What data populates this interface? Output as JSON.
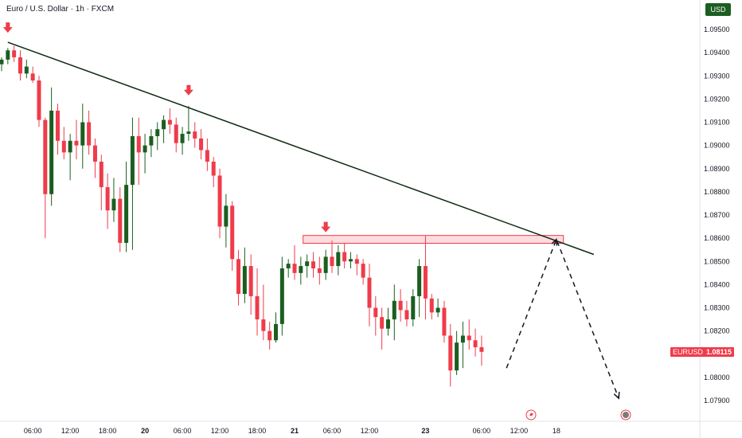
{
  "header": {
    "title": "Euro / U.S. Dollar · 1h · FXCM",
    "currency_button": "USD"
  },
  "price_tag": {
    "symbol": "EURUSD",
    "price": "1.08115"
  },
  "chart_data": {
    "type": "candlestick",
    "symbol": "EURUSD",
    "y_ticks": [
      "1.09500",
      "1.09400",
      "1.09300",
      "1.09200",
      "1.09100",
      "1.09000",
      "1.08900",
      "1.08800",
      "1.08700",
      "1.08600",
      "1.08500",
      "1.08400",
      "1.08300",
      "1.08200",
      "1.08000",
      "1.07900"
    ],
    "y_range": [
      1.0785,
      1.0955
    ],
    "x_ticks": [
      {
        "label": "06:00",
        "i": 5,
        "bold": false
      },
      {
        "label": "12:00",
        "i": 11,
        "bold": false
      },
      {
        "label": "18:00",
        "i": 17,
        "bold": false
      },
      {
        "label": "20",
        "i": 23,
        "bold": true
      },
      {
        "label": "06:00",
        "i": 29,
        "bold": false
      },
      {
        "label": "12:00",
        "i": 35,
        "bold": false
      },
      {
        "label": "18:00",
        "i": 41,
        "bold": false
      },
      {
        "label": "21",
        "i": 47,
        "bold": true
      },
      {
        "label": "06:00",
        "i": 53,
        "bold": false
      },
      {
        "label": "12:00",
        "i": 59,
        "bold": false
      },
      {
        "label": "23",
        "i": 68,
        "bold": true
      },
      {
        "label": "06:00",
        "i": 77,
        "bold": false
      },
      {
        "label": "12:00",
        "i": 83,
        "bold": false
      },
      {
        "label": "18",
        "i": 89,
        "bold": false
      }
    ],
    "candles": [
      [
        1.0935,
        1.0938,
        1.0932,
        1.0937
      ],
      [
        1.0937,
        1.0942,
        1.0935,
        1.0941
      ],
      [
        1.0941,
        1.0943,
        1.0936,
        1.0938
      ],
      [
        1.0938,
        1.0941,
        1.0928,
        1.0931
      ],
      [
        1.0931,
        1.0937,
        1.0929,
        1.0934
      ],
      [
        1.0931,
        1.0934,
        1.0927,
        1.0928
      ],
      [
        1.0928,
        1.093,
        1.0908,
        1.0911
      ],
      [
        1.0911,
        1.0912,
        1.086,
        1.0879
      ],
      [
        1.0879,
        1.0925,
        1.0874,
        1.0915
      ],
      [
        1.0915,
        1.0918,
        1.0896,
        1.0902
      ],
      [
        1.0902,
        1.0908,
        1.0894,
        1.0897
      ],
      [
        1.0897,
        1.0905,
        1.0885,
        1.0902
      ],
      [
        1.0902,
        1.0911,
        1.0894,
        1.09
      ],
      [
        1.09,
        1.0918,
        1.089,
        1.091
      ],
      [
        1.091,
        1.0915,
        1.0896,
        1.09
      ],
      [
        1.09,
        1.0903,
        1.0886,
        1.0893
      ],
      [
        1.0893,
        1.0896,
        1.0872,
        1.0882
      ],
      [
        1.0882,
        1.0888,
        1.0864,
        1.0872
      ],
      [
        1.0872,
        1.0886,
        1.0867,
        1.0877
      ],
      [
        1.0877,
        1.0882,
        1.0854,
        1.0858
      ],
      [
        1.0858,
        1.0893,
        1.0854,
        1.0883
      ],
      [
        1.0883,
        1.0912,
        1.0855,
        1.0904
      ],
      [
        1.0904,
        1.0912,
        1.0883,
        1.0897
      ],
      [
        1.0897,
        1.0905,
        1.0888,
        1.09
      ],
      [
        1.09,
        1.0907,
        1.0895,
        1.0904
      ],
      [
        1.0904,
        1.091,
        1.0898,
        1.0907
      ],
      [
        1.0907,
        1.0913,
        1.0901,
        1.0911
      ],
      [
        1.0911,
        1.0916,
        1.0905,
        1.0909
      ],
      [
        1.0909,
        1.0912,
        1.0897,
        1.0901
      ],
      [
        1.0901,
        1.0908,
        1.0896,
        1.0905
      ],
      [
        1.0905,
        1.0917,
        1.0902,
        1.0906
      ],
      [
        1.0906,
        1.091,
        1.0899,
        1.0903
      ],
      [
        1.0903,
        1.0907,
        1.0894,
        1.0898
      ],
      [
        1.0898,
        1.0903,
        1.0889,
        1.0893
      ],
      [
        1.0893,
        1.0895,
        1.0882,
        1.0887
      ],
      [
        1.0887,
        1.089,
        1.086,
        1.0865
      ],
      [
        1.0865,
        1.0879,
        1.0856,
        1.0874
      ],
      [
        1.0874,
        1.0876,
        1.0846,
        1.0851
      ],
      [
        1.0851,
        1.0855,
        1.0831,
        1.0836
      ],
      [
        1.0836,
        1.0856,
        1.0832,
        1.0848
      ],
      [
        1.0848,
        1.0853,
        1.0827,
        1.0835
      ],
      [
        1.0835,
        1.0847,
        1.0818,
        1.0825
      ],
      [
        1.0825,
        1.084,
        1.0816,
        1.082
      ],
      [
        1.082,
        1.0824,
        1.0812,
        1.0816
      ],
      [
        1.0816,
        1.0828,
        1.0815,
        1.0823
      ],
      [
        1.0823,
        1.0852,
        1.0818,
        1.0847
      ],
      [
        1.0847,
        1.0851,
        1.0843,
        1.0849
      ],
      [
        1.0849,
        1.0857,
        1.0842,
        1.0845
      ],
      [
        1.0845,
        1.0852,
        1.084,
        1.0848
      ],
      [
        1.0848,
        1.0853,
        1.0843,
        1.085
      ],
      [
        1.085,
        1.0854,
        1.0843,
        1.0847
      ],
      [
        1.0847,
        1.0852,
        1.084,
        1.0845
      ],
      [
        1.0845,
        1.0855,
        1.0842,
        1.0852
      ],
      [
        1.0852,
        1.0859,
        1.0845,
        1.0848
      ],
      [
        1.0848,
        1.0857,
        1.0844,
        1.0854
      ],
      [
        1.0854,
        1.0858,
        1.0847,
        1.085
      ],
      [
        1.085,
        1.0854,
        1.0847,
        1.0851
      ],
      [
        1.0851,
        1.0853,
        1.0844,
        1.0849
      ],
      [
        1.0849,
        1.0851,
        1.084,
        1.0843
      ],
      [
        1.0843,
        1.0849,
        1.0822,
        1.083
      ],
      [
        1.083,
        1.0835,
        1.0818,
        1.0826
      ],
      [
        1.0826,
        1.083,
        1.0812,
        1.0821
      ],
      [
        1.0821,
        1.083,
        1.0818,
        1.0825
      ],
      [
        1.0825,
        1.084,
        1.0816,
        1.0833
      ],
      [
        1.0833,
        1.0838,
        1.0824,
        1.0829
      ],
      [
        1.0829,
        1.0833,
        1.0822,
        1.0825
      ],
      [
        1.0825,
        1.0838,
        1.0822,
        1.0835
      ],
      [
        1.0835,
        1.0851,
        1.0826,
        1.0848
      ],
      [
        1.0848,
        1.0861,
        1.0825,
        1.0834
      ],
      [
        1.0834,
        1.0836,
        1.0825,
        1.0828
      ],
      [
        1.0828,
        1.0834,
        1.0826,
        1.083
      ],
      [
        1.083,
        1.0833,
        1.0815,
        1.0818
      ],
      [
        1.0818,
        1.0823,
        1.0796,
        1.0803
      ],
      [
        1.0803,
        1.082,
        1.0801,
        1.0815
      ],
      [
        1.0815,
        1.0824,
        1.0804,
        1.0818
      ],
      [
        1.0818,
        1.0825,
        1.0812,
        1.0816
      ],
      [
        1.0816,
        1.0821,
        1.0809,
        1.0813
      ],
      [
        1.0813,
        1.0818,
        1.0805,
        1.0811
      ]
    ],
    "trendline": {
      "from": [
        1,
        1.09445
      ],
      "to": [
        95,
        1.0853
      ]
    },
    "resistance_zone": {
      "from_i": 49,
      "to_i": 90,
      "low": 1.08585,
      "high": 1.08605
    },
    "down_arrows": [
      {
        "i": 1,
        "price": 1.0951
      },
      {
        "i": 30,
        "price": 1.0924
      },
      {
        "i": 52,
        "price": 1.0865
      }
    ],
    "projection_path": [
      [
        81,
        1.0804
      ],
      [
        89,
        1.08595
      ],
      [
        99,
        1.0791
      ]
    ],
    "colors": {
      "up": "#1b5e20",
      "down": "#ef3b4a",
      "trendline": "#0d2a12",
      "zone": "#ef3b4a"
    }
  }
}
